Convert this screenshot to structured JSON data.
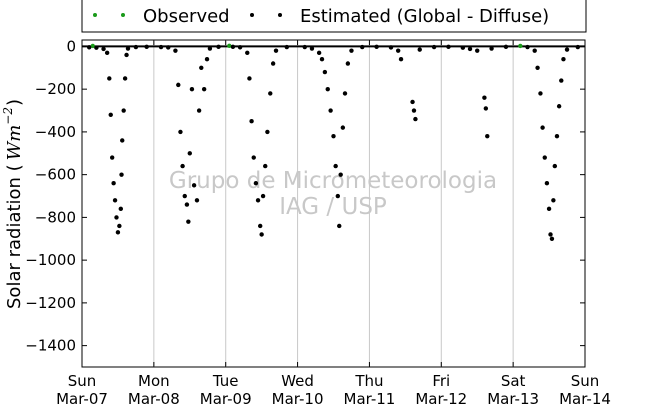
{
  "chart_data": {
    "type": "scatter",
    "title": "",
    "xlabel": "",
    "ylabel": "Solar radiation ( Wm^{-2} )",
    "ylabel_prefix": "Solar radiation (",
    "ylabel_unit": "Wm",
    "ylabel_exp": "−2",
    "ylabel_suffix": ")",
    "ylim": [
      -1500,
      30
    ],
    "xlim": [
      "2010-03-07",
      "2010-03-14"
    ],
    "yticks": [
      {
        "value": 0,
        "label": "0"
      },
      {
        "value": -200,
        "label": "−200"
      },
      {
        "value": -400,
        "label": "−400"
      },
      {
        "value": -600,
        "label": "−600"
      },
      {
        "value": -800,
        "label": "−800"
      },
      {
        "value": -1000,
        "label": "−1000"
      },
      {
        "value": -1200,
        "label": "−1200"
      },
      {
        "value": -1400,
        "label": "−1400"
      }
    ],
    "xticks": [
      {
        "day": 0,
        "dow": "Sun",
        "date": "Mar-07"
      },
      {
        "day": 1,
        "dow": "Mon",
        "date": "Mar-08"
      },
      {
        "day": 2,
        "dow": "Tue",
        "date": "Mar-09"
      },
      {
        "day": 3,
        "dow": "Wed",
        "date": "Mar-10"
      },
      {
        "day": 4,
        "dow": "Thu",
        "date": "Mar-11"
      },
      {
        "day": 5,
        "dow": "Fri",
        "date": "Mar-12"
      },
      {
        "day": 6,
        "dow": "Sat",
        "date": "Mar-13"
      },
      {
        "day": 7,
        "dow": "Sun",
        "date": "Mar-14"
      }
    ],
    "grid": "vertical",
    "legend_position": "top-outside",
    "watermark": [
      "Grupo de Micrometeorologia",
      "IAG / USP"
    ],
    "series": [
      {
        "name": "Observed",
        "color": "#1a9a1a",
        "points": [
          {
            "x": 0.15,
            "y": 2
          },
          {
            "x": 2.05,
            "y": 3
          },
          {
            "x": 6.1,
            "y": 2
          }
        ]
      },
      {
        "name": "Estimated (Global - Diffuse)",
        "color": "#000000",
        "points": [
          {
            "x": 0.1,
            "y": -4
          },
          {
            "x": 0.2,
            "y": -6
          },
          {
            "x": 0.3,
            "y": -12
          },
          {
            "x": 0.35,
            "y": -30
          },
          {
            "x": 0.38,
            "y": -150
          },
          {
            "x": 0.4,
            "y": -320
          },
          {
            "x": 0.42,
            "y": -520
          },
          {
            "x": 0.44,
            "y": -640
          },
          {
            "x": 0.46,
            "y": -720
          },
          {
            "x": 0.48,
            "y": -800
          },
          {
            "x": 0.5,
            "y": -870
          },
          {
            "x": 0.52,
            "y": -840
          },
          {
            "x": 0.54,
            "y": -760
          },
          {
            "x": 0.55,
            "y": -600
          },
          {
            "x": 0.56,
            "y": -440
          },
          {
            "x": 0.58,
            "y": -300
          },
          {
            "x": 0.6,
            "y": -150
          },
          {
            "x": 0.62,
            "y": -40
          },
          {
            "x": 0.64,
            "y": -10
          },
          {
            "x": 0.75,
            "y": -3
          },
          {
            "x": 0.9,
            "y": -2
          },
          {
            "x": 1.1,
            "y": -3
          },
          {
            "x": 1.2,
            "y": -5
          },
          {
            "x": 1.3,
            "y": -20
          },
          {
            "x": 1.34,
            "y": -180
          },
          {
            "x": 1.37,
            "y": -400
          },
          {
            "x": 1.4,
            "y": -560
          },
          {
            "x": 1.43,
            "y": -700
          },
          {
            "x": 1.46,
            "y": -740
          },
          {
            "x": 1.48,
            "y": -820
          },
          {
            "x": 1.5,
            "y": -500
          },
          {
            "x": 1.53,
            "y": -200
          },
          {
            "x": 1.56,
            "y": -650
          },
          {
            "x": 1.6,
            "y": -720
          },
          {
            "x": 1.63,
            "y": -300
          },
          {
            "x": 1.66,
            "y": -100
          },
          {
            "x": 1.7,
            "y": -200
          },
          {
            "x": 1.74,
            "y": -60
          },
          {
            "x": 1.78,
            "y": -10
          },
          {
            "x": 1.9,
            "y": -2
          },
          {
            "x": 2.1,
            "y": -2
          },
          {
            "x": 2.2,
            "y": -4
          },
          {
            "x": 2.3,
            "y": -30
          },
          {
            "x": 2.33,
            "y": -150
          },
          {
            "x": 2.36,
            "y": -350
          },
          {
            "x": 2.39,
            "y": -520
          },
          {
            "x": 2.42,
            "y": -640
          },
          {
            "x": 2.45,
            "y": -720
          },
          {
            "x": 2.48,
            "y": -840
          },
          {
            "x": 2.5,
            "y": -880
          },
          {
            "x": 2.52,
            "y": -700
          },
          {
            "x": 2.55,
            "y": -560
          },
          {
            "x": 2.58,
            "y": -400
          },
          {
            "x": 2.62,
            "y": -220
          },
          {
            "x": 2.66,
            "y": -80
          },
          {
            "x": 2.7,
            "y": -20
          },
          {
            "x": 2.85,
            "y": -3
          },
          {
            "x": 3.1,
            "y": -3
          },
          {
            "x": 3.2,
            "y": -10
          },
          {
            "x": 3.3,
            "y": -30
          },
          {
            "x": 3.34,
            "y": -60
          },
          {
            "x": 3.38,
            "y": -120
          },
          {
            "x": 3.42,
            "y": -200
          },
          {
            "x": 3.46,
            "y": -300
          },
          {
            "x": 3.5,
            "y": -420
          },
          {
            "x": 3.53,
            "y": -560
          },
          {
            "x": 3.56,
            "y": -700
          },
          {
            "x": 3.58,
            "y": -840
          },
          {
            "x": 3.6,
            "y": -600
          },
          {
            "x": 3.63,
            "y": -380
          },
          {
            "x": 3.66,
            "y": -220
          },
          {
            "x": 3.7,
            "y": -80
          },
          {
            "x": 3.75,
            "y": -20
          },
          {
            "x": 3.9,
            "y": -3
          },
          {
            "x": 4.1,
            "y": -2
          },
          {
            "x": 4.3,
            "y": -5
          },
          {
            "x": 4.4,
            "y": -20
          },
          {
            "x": 4.44,
            "y": -60
          },
          {
            "x": 4.6,
            "y": -260
          },
          {
            "x": 4.62,
            "y": -300
          },
          {
            "x": 4.64,
            "y": -340
          },
          {
            "x": 4.7,
            "y": -15
          },
          {
            "x": 4.9,
            "y": -3
          },
          {
            "x": 5.1,
            "y": -2
          },
          {
            "x": 5.3,
            "y": -6
          },
          {
            "x": 5.4,
            "y": -12
          },
          {
            "x": 5.5,
            "y": -20
          },
          {
            "x": 5.6,
            "y": -240
          },
          {
            "x": 5.62,
            "y": -290
          },
          {
            "x": 5.64,
            "y": -420
          },
          {
            "x": 5.7,
            "y": -10
          },
          {
            "x": 5.9,
            "y": -2
          },
          {
            "x": 6.2,
            "y": -3
          },
          {
            "x": 6.3,
            "y": -20
          },
          {
            "x": 6.34,
            "y": -100
          },
          {
            "x": 6.38,
            "y": -220
          },
          {
            "x": 6.41,
            "y": -380
          },
          {
            "x": 6.44,
            "y": -520
          },
          {
            "x": 6.47,
            "y": -640
          },
          {
            "x": 6.5,
            "y": -760
          },
          {
            "x": 6.52,
            "y": -880
          },
          {
            "x": 6.54,
            "y": -900
          },
          {
            "x": 6.56,
            "y": -720
          },
          {
            "x": 6.58,
            "y": -560
          },
          {
            "x": 6.61,
            "y": -420
          },
          {
            "x": 6.64,
            "y": -280
          },
          {
            "x": 6.67,
            "y": -160
          },
          {
            "x": 6.7,
            "y": -60
          },
          {
            "x": 6.75,
            "y": -15
          },
          {
            "x": 6.9,
            "y": -3
          }
        ]
      }
    ]
  }
}
